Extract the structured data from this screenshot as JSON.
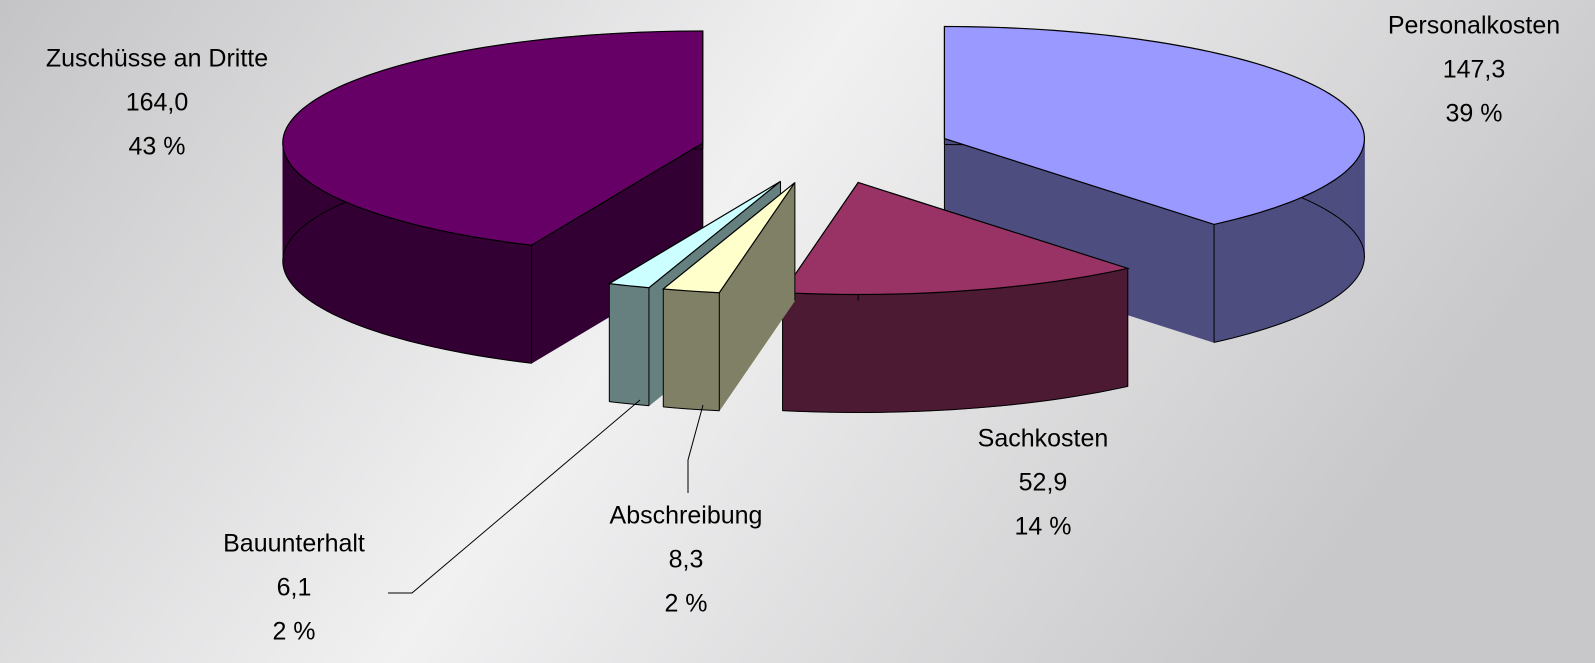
{
  "chart_data": {
    "type": "pie3d",
    "categories": [
      "Personalkosten",
      "Sachkosten",
      "Abschreibung",
      "Bauunterhalt",
      "Zuschüsse an Dritte"
    ],
    "values": [
      147.3,
      52.9,
      8.3,
      6.1,
      164.0
    ],
    "value_labels": [
      "147,3",
      "52,9",
      "8,3",
      "6,1",
      "164,0"
    ],
    "percent_labels": [
      "39 %",
      "14 %",
      "2 %",
      "2 %",
      "43 %"
    ],
    "colors": [
      "#9999ff",
      "#993366",
      "#ffffcc",
      "#ccffff",
      "#660066"
    ]
  }
}
